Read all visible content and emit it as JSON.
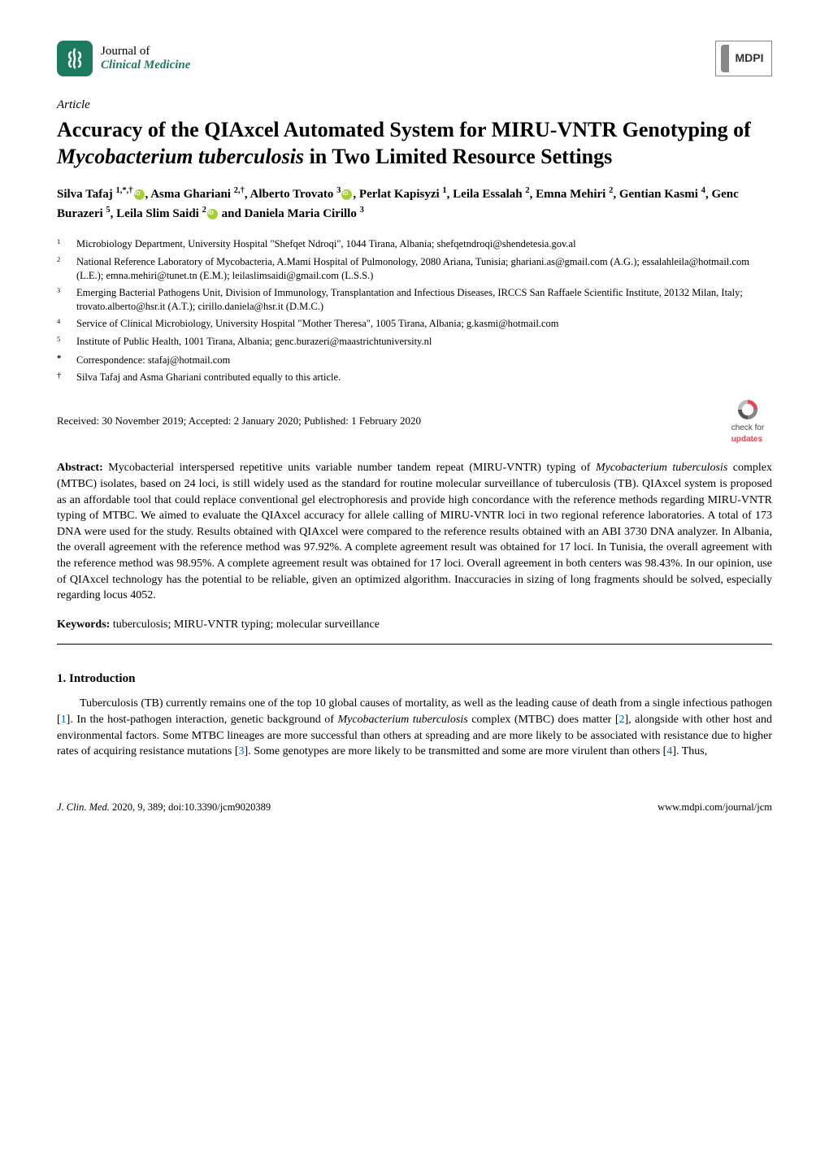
{
  "header": {
    "journal_of": "Journal of",
    "journal_name": "Clinical Medicine",
    "publisher_logo": "MDPI"
  },
  "article_type": "Article",
  "title_parts": {
    "line1": "Accuracy of the QIAxcel Automated System for MIRU-VNTR Genotyping of",
    "italic": "Mycobacterium tuberculosis",
    "line3": " in Two Limited Resource Settings"
  },
  "authors_html": "Silva Tafaj <span class='sup'>1,*,†</span><span class='orcid'></span>, Asma Ghariani <span class='sup'>2,†</span>, Alberto Trovato <span class='sup'>3</span><span class='orcid'></span>, Perlat Kapisyzi <span class='sup'>1</span>, Leila Essalah <span class='sup'>2</span>, Emna Mehiri <span class='sup'>2</span>, Gentian Kasmi <span class='sup'>4</span>, Genc Burazeri <span class='sup'>5</span>, Leila Slim Saidi <span class='sup'>2</span><span class='orcid'></span> and Daniela Maria Cirillo <span class='sup'>3</span>",
  "affiliations": [
    {
      "num": "1",
      "text": "Microbiology Department, University Hospital \"Shefqet Ndroqi\", 1044 Tirana, Albania; shefqetndroqi@shendetesia.gov.al"
    },
    {
      "num": "2",
      "text": "National Reference Laboratory of Mycobacteria, A.Mami Hospital of Pulmonology, 2080 Ariana, Tunisia; ghariani.as@gmail.com (A.G.); essalahleila@hotmail.com (L.E.); emna.mehiri@tunet.tn (E.M.); leilaslimsaidi@gmail.com (L.S.S.)"
    },
    {
      "num": "3",
      "text": "Emerging Bacterial Pathogens Unit, Division of Immunology, Transplantation and Infectious Diseases, IRCCS San Raffaele Scientific Institute, 20132 Milan, Italy; trovato.alberto@hsr.it (A.T.); cirillo.daniela@hsr.it (D.M.C.)"
    },
    {
      "num": "4",
      "text": "Service of Clinical Microbiology, University Hospital \"Mother Theresa\", 1005 Tirana, Albania; g.kasmi@hotmail.com"
    },
    {
      "num": "5",
      "text": "Institute of Public Health, 1001 Tirana, Albania; genc.burazeri@maastrichtuniversity.nl"
    },
    {
      "num": "*",
      "text": "Correspondence: stafaj@hotmail.com"
    },
    {
      "num": "†",
      "text": "Silva Tafaj and Asma Ghariani contributed equally to this article."
    }
  ],
  "received": "Received: 30 November 2019; Accepted: 2 January 2020; Published: 1 February 2020",
  "check_updates": {
    "line1": "check for",
    "line2": "updates"
  },
  "abstract": {
    "label": "Abstract:",
    "text": "Mycobacterial interspersed repetitive units variable number tandem repeat (MIRU-VNTR) typing of Mycobacterium tuberculosis complex (MTBC) isolates, based on 24 loci, is still widely used as the standard for routine molecular surveillance of tuberculosis (TB). QIAxcel system is proposed as an affordable tool that could replace conventional gel electrophoresis and provide high concordance with the reference methods regarding MIRU-VNTR typing of MTBC. We aimed to evaluate the QIAxcel accuracy for allele calling of MIRU-VNTR loci in two regional reference laboratories. A total of 173 DNA were used for the study. Results obtained with QIAxcel were compared to the reference results obtained with an ABI 3730 DNA analyzer. In Albania, the overall agreement with the reference method was 97.92%. A complete agreement result was obtained for 17 loci. In Tunisia, the overall agreement with the reference method was 98.95%. A complete agreement result was obtained for 17 loci. Overall agreement in both centers was 98.43%. In our opinion, use of QIAxcel technology has the potential to be reliable, given an optimized algorithm. Inaccuracies in sizing of long fragments should be solved, especially regarding locus 4052."
  },
  "keywords": {
    "label": "Keywords:",
    "text": "tuberculosis; MIRU-VNTR typing; molecular surveillance"
  },
  "section1": {
    "heading": "1. Introduction",
    "para_html": "Tuberculosis (TB) currently remains one of the top 10 global causes of mortality, as well as the leading cause of death from a single infectious pathogen [<span class='ref-link'>1</span>]. In the host-pathogen interaction, genetic background of <i>Mycobacterium tuberculosis</i> complex (MTBC) does matter [<span class='ref-link'>2</span>], alongside with other host and environmental factors. Some MTBC lineages are more successful than others at spreading and are more likely to be associated with resistance due to higher rates of acquiring resistance mutations [<span class='ref-link'>3</span>]. Some genotypes are more likely to be transmitted and some are more virulent than others [<span class='ref-link'>4</span>]. Thus,"
  },
  "footer": {
    "left_italic": "J. Clin. Med.",
    "left_rest": " 2020, 9, 389; doi:10.3390/jcm9020389",
    "right": "www.mdpi.com/journal/jcm"
  },
  "colors": {
    "journal_green": "#1c7a5e",
    "orcid_green": "#a6ce39",
    "link_blue": "#0066cc",
    "updates_red": "#e84855"
  }
}
